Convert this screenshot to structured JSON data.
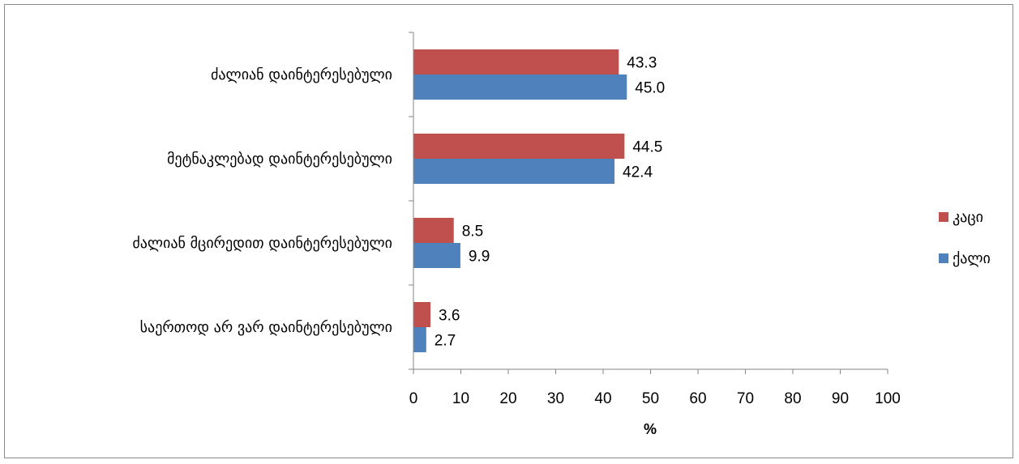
{
  "chart_data": {
    "type": "bar",
    "orientation": "horizontal",
    "categories": [
      "ძალიან დაინტერესებული",
      "მეტნაკლებად დაინტერესებული",
      "ძალიან მცირედით დაინტერესებული",
      "საერთოდ არ ვარ დაინტერესებული"
    ],
    "series": [
      {
        "name": "კაცი",
        "color": "#C0504D",
        "values": [
          43.3,
          44.5,
          8.5,
          3.6
        ]
      },
      {
        "name": "ქალი",
        "color": "#4F81BD",
        "values": [
          45.0,
          42.4,
          9.9,
          2.7
        ]
      }
    ],
    "xlabel": "%",
    "xlim": [
      0,
      100
    ],
    "xticks": [
      "0",
      "10",
      "20",
      "30",
      "40",
      "50",
      "60",
      "70",
      "80",
      "90",
      "100"
    ],
    "data_labels": [
      [
        "43.3",
        "44.5",
        "8.5",
        "3.6"
      ],
      [
        "45.0",
        "42.4",
        "9.9",
        "2.7"
      ]
    ],
    "grid": false,
    "legend_position": "right"
  }
}
